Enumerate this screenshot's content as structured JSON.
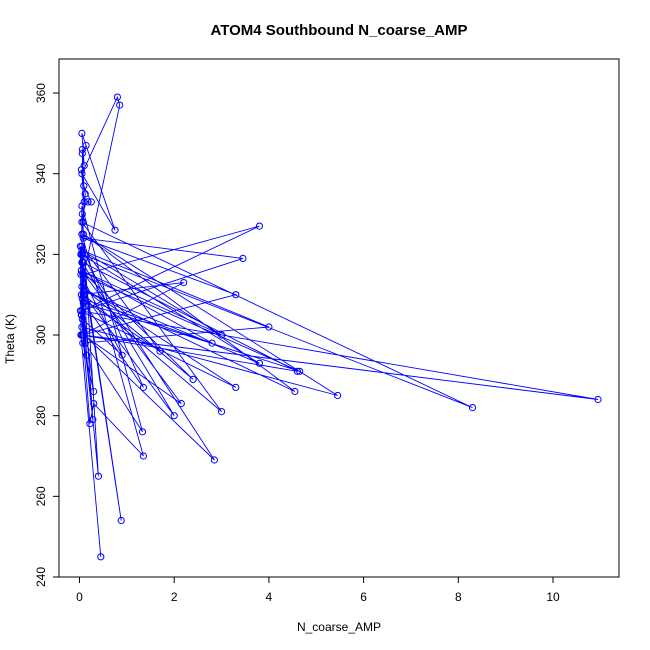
{
  "chart_data": {
    "type": "line",
    "title": "ATOM4 Southbound N_coarse_AMP",
    "xlabel": "N_coarse_AMP",
    "ylabel": "Theta (K)",
    "xlim": [
      0,
      11
    ],
    "ylim": [
      240,
      365
    ],
    "x_ticks": [
      "0",
      "2",
      "4",
      "6",
      "8",
      "10"
    ],
    "y_ticks": [
      "240",
      "260",
      "280",
      "300",
      "320",
      "340",
      "360"
    ],
    "grid": false,
    "markers": "open-circle",
    "colors": {
      "series": "#0000ff",
      "axes": "#000000"
    },
    "series": [
      {
        "name": "",
        "x": [
          0.45,
          0.03,
          0.02,
          0.88,
          0.05,
          0.08,
          0.15,
          0.4,
          0.06,
          0.04,
          0.22,
          0.3,
          1.35,
          0.05,
          0.07,
          0.1,
          2.85,
          0.03,
          0.08,
          0.12,
          1.33,
          0.05,
          0.04,
          0.28,
          0.06,
          2.0,
          0.09,
          3.0,
          0.05,
          8.3,
          0.06,
          0.08,
          2.15,
          0.04,
          2.4,
          0.05,
          3.3,
          0.02,
          10.95,
          0.05,
          4.6,
          0.07,
          0.05,
          5.45,
          0.08,
          4.55,
          0.1,
          3.8,
          0.04,
          0.06,
          0.9,
          0.03,
          4.65,
          0.09,
          1.35,
          0.05,
          1.7,
          0.06,
          2.8,
          0.04,
          3.0,
          0.05,
          4.0,
          0.07,
          0.3,
          0.04,
          2.2,
          0.06,
          3.3,
          0.08,
          3.45,
          0.05,
          3.8,
          0.09,
          0.85,
          0.8,
          0.05,
          0.75,
          0.05,
          0.1,
          0.06,
          0.08,
          0.12,
          0.04,
          0.1,
          0.18,
          0.25,
          0.09,
          0.06,
          0.14
        ],
        "y": [
          245,
          300,
          322,
          254,
          318,
          310,
          295,
          265,
          330,
          305,
          278,
          283,
          270,
          325,
          315,
          300,
          269,
          320,
          308,
          298,
          276,
          332,
          305,
          279,
          318,
          280,
          310,
          281,
          328,
          282,
          320,
          300,
          283,
          316,
          289,
          312,
          287,
          306,
          284,
          300,
          291,
          318,
          302,
          285,
          325,
          286,
          311,
          293,
          320,
          304,
          295,
          315,
          291,
          308,
          287,
          322,
          296,
          309,
          298,
          316,
          300,
          321,
          302,
          298,
          286,
          310,
          313,
          300,
          310,
          324,
          319,
          306,
          327,
          315,
          357,
          359,
          340,
          326,
          350,
          342,
          346,
          328,
          335,
          341,
          333,
          333,
          333,
          337,
          345,
          347
        ]
      }
    ]
  }
}
